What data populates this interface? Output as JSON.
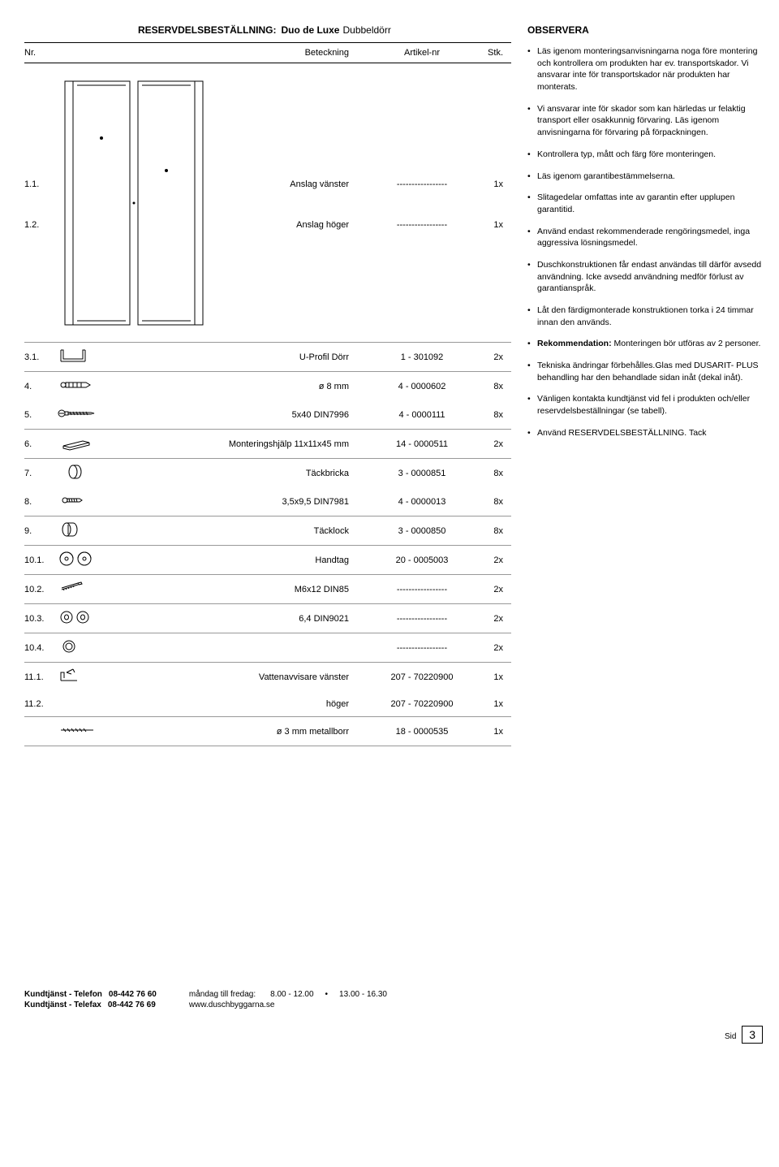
{
  "title": {
    "strong": "RESERVDELSBESTÄLLNING:",
    "product": "Duo de Luxe",
    "variant": "Dubbeldörr"
  },
  "headers": {
    "nr": "Nr.",
    "name": "Beteckning",
    "art": "Artikel-nr",
    "stk": "Stk."
  },
  "bigrow": {
    "r1": {
      "nr": "1.1.",
      "name": "Anslag vänster",
      "art": "-----------------",
      "stk": "1x"
    },
    "r2": {
      "nr": "1.2.",
      "name": "Anslag höger",
      "art": "-----------------",
      "stk": "1x"
    }
  },
  "rows": [
    {
      "nr": "3.1.",
      "name": "U-Profil Dörr",
      "art": "1 - 301092",
      "stk": "2x",
      "icon": "uprofile"
    },
    {
      "nr": "4.",
      "name": "ø 8 mm",
      "art": "4 - 0000602",
      "stk": "8x",
      "icon": "plug",
      "noborder": true
    },
    {
      "nr": "5.",
      "name": "5x40 DIN7996",
      "art": "4 - 0000111",
      "stk": "8x",
      "icon": "screw-long"
    },
    {
      "nr": "6.",
      "name": "Monteringshjälp 11x11x45 mm",
      "art": "14 - 0000511",
      "stk": "2x",
      "icon": "block"
    },
    {
      "nr": "7.",
      "name": "Täckbricka",
      "art": "3 - 0000851",
      "stk": "8x",
      "icon": "cap",
      "noborder": true
    },
    {
      "nr": "8.",
      "name": "3,5x9,5 DIN7981",
      "art": "4 - 0000013",
      "stk": "8x",
      "icon": "screw-short"
    },
    {
      "nr": "9.",
      "name": "Täcklock",
      "art": "3 - 0000850",
      "stk": "8x",
      "icon": "lock"
    },
    {
      "nr": "10.1.",
      "name": "Handtag",
      "art": "20 - 0005003",
      "stk": "2x",
      "icon": "knobs"
    },
    {
      "nr": "10.2.",
      "name": "M6x12 DIN85",
      "art": "-----------------",
      "stk": "2x",
      "icon": "bolt"
    },
    {
      "nr": "10.3.",
      "name": "6,4 DIN9021",
      "art": "-----------------",
      "stk": "2x",
      "icon": "washers"
    },
    {
      "nr": "10.4.",
      "name": "",
      "art": "-----------------",
      "stk": "2x",
      "icon": "ring"
    },
    {
      "nr": "11.1.",
      "name": "Vattenavvisare  vänster",
      "art": "207 - 70220900",
      "stk": "1x",
      "icon": "deflector",
      "noborder": true
    },
    {
      "nr": "11.2.",
      "name": "höger",
      "art": "207 - 70220900",
      "stk": "1x",
      "icon": ""
    },
    {
      "nr": "",
      "name": "ø 3 mm metallborr",
      "art": "18 - 0000535",
      "stk": "1x",
      "icon": "drill"
    }
  ],
  "observe": {
    "title": "OBSERVERA",
    "items": [
      "Läs igenom monteringsanvisningarna noga före montering och kontrollera om produkten har ev. transportskador. Vi ansvarar inte för transportskador när produkten har monterats.",
      "Vi ansvarar inte för skador som kan härledas ur felaktig transport eller osakkunnig förvaring. Läs igenom anvisningarna för förvaring på förpackningen.",
      "Kontrollera typ, mått och färg före monteringen.",
      "Läs igenom garantibestämmelserna.",
      "Slitagedelar omfattas inte av garantin efter upplupen garantitid.",
      "Använd endast rekommenderade rengöringsmedel, inga aggressiva lösningsmedel.",
      "Duschkonstruktionen får endast användas till därför avsedd användning. Icke avsedd användning medför förlust av garantianspråk.",
      "Låt den färdigmonterade konstruktionen torka i 24 timmar innan den används.",
      "<b>Rekommendation:</b> Monteringen bör utföras av 2 personer.",
      "Tekniska ändringar förbehålles.Glas med DUSARIT- PLUS behandling har den behandlade sidan inåt (dekal inåt).",
      "Vänligen kontakta kundtjänst vid fel i produkten och/eller reservdelsbeställningar (se tabell).",
      "Använd RESERVDELSBESTÄLLNING. Tack"
    ]
  },
  "footer": {
    "tel_label": "Kundtjänst - Telefon",
    "tel": "08-442 76 60",
    "fax_label": "Kundtjänst - Telefax",
    "fax": "08-442 76 69",
    "hours_label": "måndag till fredag:",
    "hours1": "8.00 - 12.00",
    "hours_sep": "•",
    "hours2": "13.00 - 16.30",
    "url": "www.duschbyggarna.se",
    "page_label": "Sid",
    "page_nr": "3"
  }
}
